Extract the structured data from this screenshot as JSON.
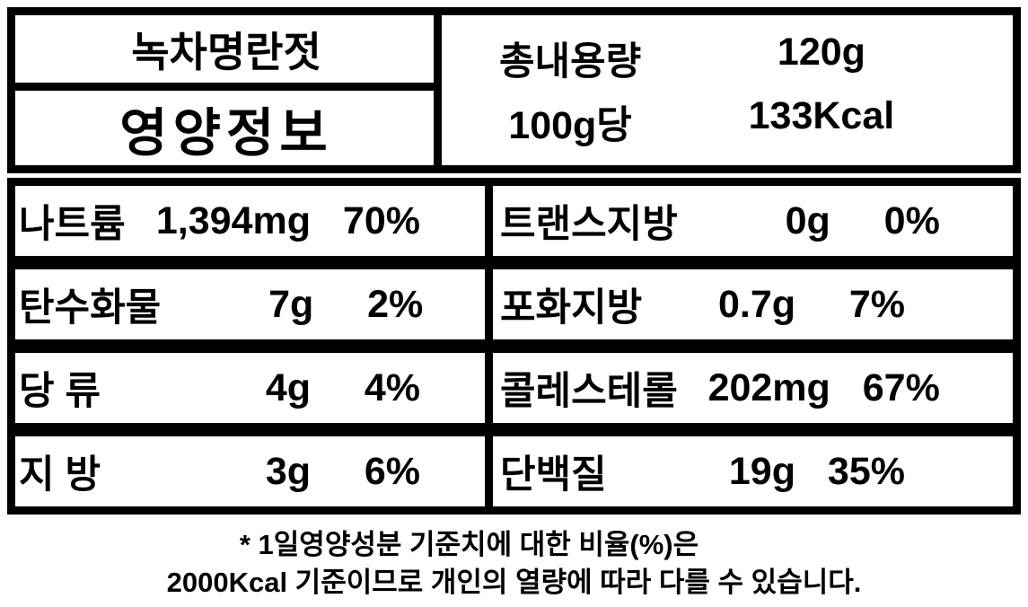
{
  "label": {
    "product_name": "녹차명란젓",
    "title": "영양정보",
    "serving": {
      "total_label": "총내용량",
      "total_value": "120g",
      "per_label": "100g당",
      "per_value": "133Kcal"
    },
    "rows_left": [
      {
        "name": "나트륨",
        "amount": "1,394mg",
        "dv": "70%"
      },
      {
        "name": "탄수화물",
        "amount": "7g",
        "dv": "2%"
      },
      {
        "name": "당 류",
        "amount": "4g",
        "dv": "4%"
      },
      {
        "name": "지 방",
        "amount": "3g",
        "dv": "6%"
      }
    ],
    "rows_right": [
      {
        "name": "트랜스지방",
        "amount": "0g",
        "dv": "0%"
      },
      {
        "name": "포화지방",
        "amount": "0.7g",
        "dv": "7%"
      },
      {
        "name": "콜레스테롤",
        "amount": "202mg",
        "dv": "67%"
      },
      {
        "name": "단백질",
        "amount": "19g",
        "dv": "35%"
      }
    ],
    "footnote_line1": "* 1일영양성분 기준치에 대한 비율(%)은",
    "footnote_line2": "2000Kcal 기준이므로 개인의 열량에 따라 다를 수 있습니다.",
    "colors": {
      "border": "#000000",
      "background": "#ffffff",
      "text": "#000000"
    }
  }
}
